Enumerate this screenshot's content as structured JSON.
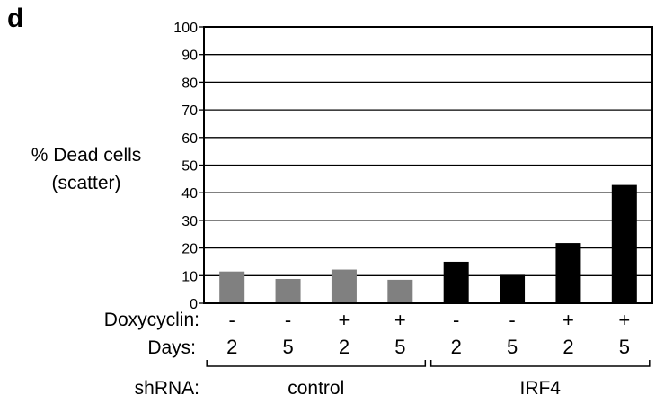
{
  "figure": {
    "panel_label": "d"
  },
  "chart_data": {
    "type": "bar",
    "ylabel_lines": [
      "% Dead cells",
      "(scatter)"
    ],
    "ylim": [
      0,
      100
    ],
    "yticks": [
      0,
      10,
      20,
      30,
      40,
      50,
      60,
      70,
      80,
      90,
      100
    ],
    "grid": true,
    "legend": "none",
    "values": [
      11.5,
      8.8,
      12.2,
      8.5,
      15.0,
      10.3,
      21.8,
      42.8
    ],
    "bar_colors": [
      "#808080",
      "#808080",
      "#808080",
      "#808080",
      "#000000",
      "#000000",
      "#000000",
      "#000000"
    ],
    "rows": [
      {
        "label": "Doxycyclin:",
        "values": [
          "-",
          "-",
          "+",
          "+",
          "-",
          "-",
          "+",
          "+"
        ]
      },
      {
        "label": "Days:",
        "values": [
          "2",
          "5",
          "2",
          "5",
          "2",
          "5",
          "2",
          "5"
        ]
      }
    ],
    "group_row": {
      "label": "shRNA:",
      "groups": [
        {
          "name": "control",
          "span": [
            0,
            3
          ]
        },
        {
          "name": "IRF4",
          "span": [
            4,
            7
          ]
        }
      ]
    }
  }
}
